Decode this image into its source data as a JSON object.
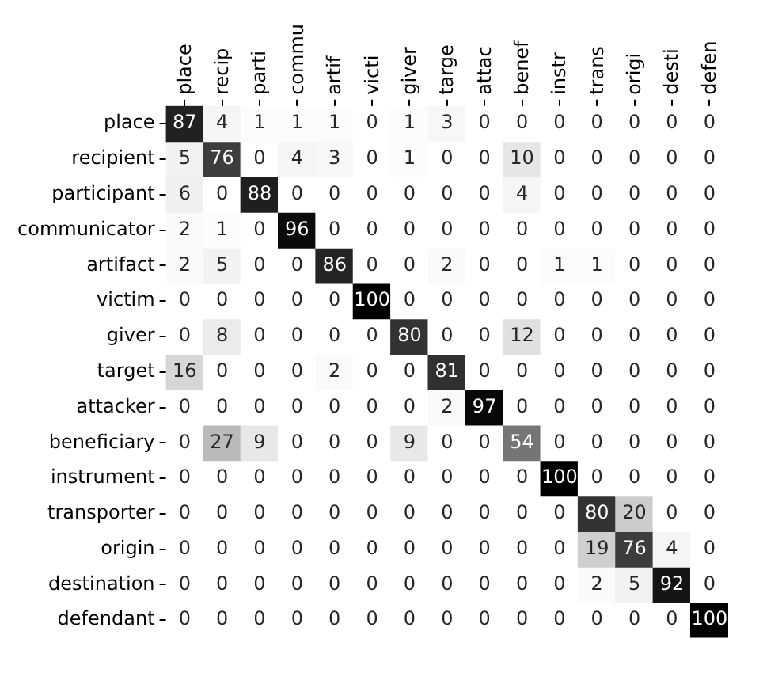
{
  "chart_data": {
    "type": "heatmap",
    "categories": [
      "place",
      "recip",
      "parti",
      "commu",
      "artif",
      "victi",
      "giver",
      "targe",
      "attac",
      "benef",
      "instr",
      "trans",
      "origi",
      "desti",
      "defen"
    ],
    "y_categories": [
      "place",
      "recipient",
      "participant",
      "communicator",
      "artifact",
      "victim",
      "giver",
      "target",
      "attacker",
      "beneficiary",
      "instrument",
      "transporter",
      "origin",
      "destination",
      "defendant"
    ],
    "cells": [
      [
        87,
        4,
        1,
        1,
        1,
        0,
        1,
        3,
        0,
        0,
        0,
        0,
        0,
        0,
        0
      ],
      [
        5,
        76,
        0,
        4,
        3,
        0,
        1,
        0,
        0,
        10,
        0,
        0,
        0,
        0,
        0
      ],
      [
        6,
        0,
        88,
        0,
        0,
        0,
        0,
        0,
        0,
        4,
        0,
        0,
        0,
        0,
        0
      ],
      [
        2,
        1,
        0,
        96,
        0,
        0,
        0,
        0,
        0,
        0,
        0,
        0,
        0,
        0,
        0
      ],
      [
        2,
        5,
        0,
        0,
        86,
        0,
        0,
        2,
        0,
        0,
        1,
        1,
        0,
        0,
        0
      ],
      [
        0,
        0,
        0,
        0,
        0,
        100,
        0,
        0,
        0,
        0,
        0,
        0,
        0,
        0,
        0
      ],
      [
        0,
        8,
        0,
        0,
        0,
        0,
        80,
        0,
        0,
        12,
        0,
        0,
        0,
        0,
        0
      ],
      [
        16,
        0,
        0,
        0,
        2,
        0,
        0,
        81,
        0,
        0,
        0,
        0,
        0,
        0,
        0
      ],
      [
        0,
        0,
        0,
        0,
        0,
        0,
        0,
        2,
        97,
        0,
        0,
        0,
        0,
        0,
        0
      ],
      [
        0,
        27,
        9,
        0,
        0,
        0,
        9,
        0,
        0,
        54,
        0,
        0,
        0,
        0,
        0
      ],
      [
        0,
        0,
        0,
        0,
        0,
        0,
        0,
        0,
        0,
        0,
        100,
        0,
        0,
        0,
        0
      ],
      [
        0,
        0,
        0,
        0,
        0,
        0,
        0,
        0,
        0,
        0,
        0,
        80,
        20,
        0,
        0
      ],
      [
        0,
        0,
        0,
        0,
        0,
        0,
        0,
        0,
        0,
        0,
        0,
        19,
        76,
        4,
        0
      ],
      [
        0,
        0,
        0,
        0,
        0,
        0,
        0,
        0,
        0,
        0,
        0,
        2,
        5,
        92,
        0
      ],
      [
        0,
        0,
        0,
        0,
        0,
        0,
        0,
        0,
        0,
        0,
        0,
        0,
        0,
        0,
        100
      ]
    ],
    "data_labels": true
  }
}
